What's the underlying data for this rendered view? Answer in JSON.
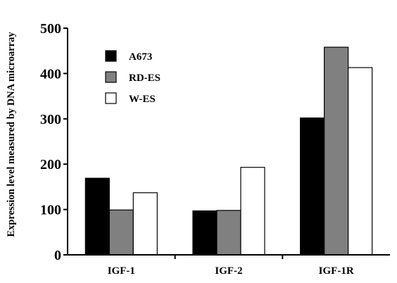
{
  "chart_data": {
    "type": "bar",
    "title": "",
    "xlabel": "",
    "ylabel": "Expression level measured by DNA microarray",
    "ylim": [
      0,
      500
    ],
    "yticks": [
      0,
      100,
      200,
      300,
      400,
      500
    ],
    "categories": [
      "IGF-1",
      "IGF-2",
      "IGF-1R"
    ],
    "series": [
      {
        "name": "A673",
        "color": "#000000",
        "values": [
          169,
          97,
          302
        ]
      },
      {
        "name": "RD-ES",
        "color": "#808080",
        "values": [
          99,
          98,
          458
        ]
      },
      {
        "name": "W-ES",
        "color": "#ffffff",
        "values": [
          137,
          193,
          413
        ]
      }
    ],
    "grid": false,
    "legend": "top-left"
  }
}
